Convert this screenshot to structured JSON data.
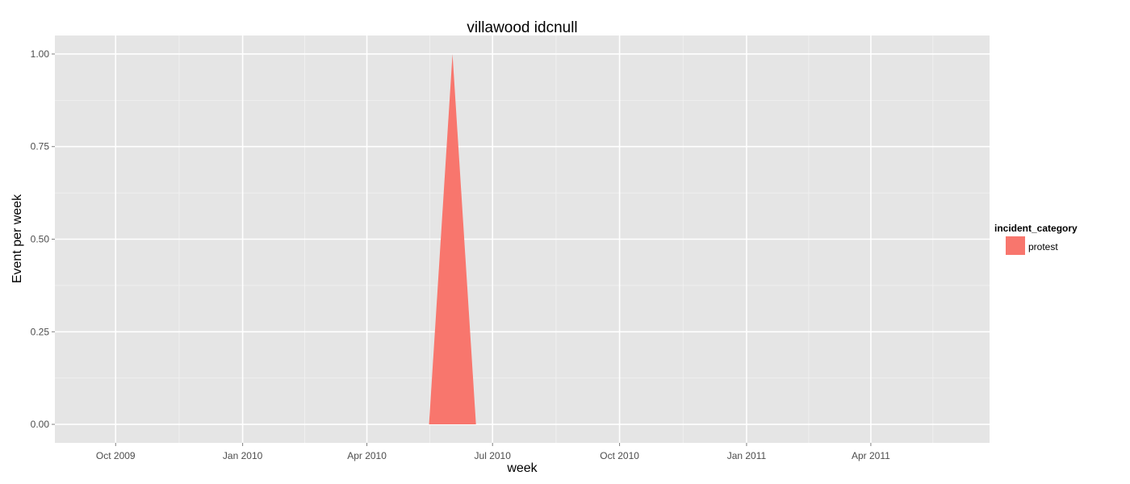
{
  "chart_data": {
    "type": "area",
    "title": "villawood idcnull",
    "xlabel": "week",
    "ylabel": "Event per week",
    "x_tick_labels": [
      {
        "date": "2009-10-01",
        "label": "Oct 2009"
      },
      {
        "date": "2010-01-01",
        "label": "Jan 2010"
      },
      {
        "date": "2010-04-01",
        "label": "Apr 2010"
      },
      {
        "date": "2010-07-01",
        "label": "Jul 2010"
      },
      {
        "date": "2010-10-01",
        "label": "Oct 2010"
      },
      {
        "date": "2011-01-01",
        "label": "Jan 2011"
      },
      {
        "date": "2011-04-01",
        "label": "Apr 2011"
      }
    ],
    "y_ticks": [
      0,
      0.25,
      0.5,
      0.75,
      1
    ],
    "y_tick_labels": [
      "0.00",
      "0.25",
      "0.50",
      "0.75",
      "1.00"
    ],
    "xlim": [
      "2009-08-18",
      "2011-06-26"
    ],
    "ylim": [
      -0.05,
      1.05
    ],
    "grid": true,
    "legend_position": "right",
    "legend_title": "incident_category",
    "series": [
      {
        "name": "protest",
        "color": "#F8766D",
        "x": [
          "2010-05-16",
          "2010-06-02",
          "2010-06-19"
        ],
        "y": [
          0,
          1,
          0
        ]
      }
    ]
  }
}
